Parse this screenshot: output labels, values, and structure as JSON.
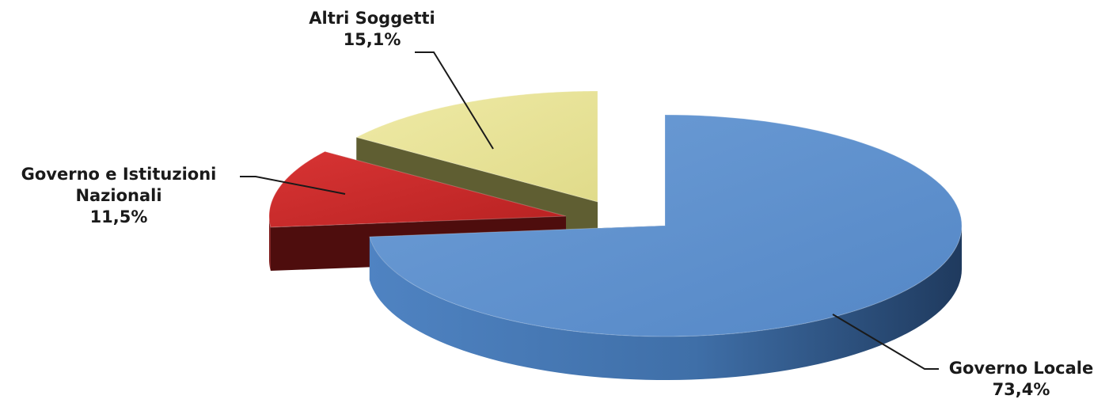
{
  "chart_data": {
    "type": "pie",
    "title": "",
    "slices": [
      {
        "label": "Governo Locale",
        "value": 73.4,
        "display": "73,4%",
        "color": "#5b8fcc",
        "side_color": "#3b6aa3",
        "dark_color": "#233f66"
      },
      {
        "label": "Governo e Istituzioni Nazionali",
        "value": 11.5,
        "display": "11,5%",
        "color": "#cc2a2a",
        "side_color": "#7a1616",
        "dark_color": "#4e0d0d"
      },
      {
        "label": "Altri Soggetti",
        "value": 15.1,
        "display": "15,1%",
        "color": "#e9e49a",
        "side_color": "#8c8a4e",
        "dark_color": "#5f5e32"
      }
    ],
    "exploded": true,
    "style": "3d"
  },
  "labels": {
    "altri_name": "Altri Soggetti",
    "altri_value": "15,1%",
    "gov_line1": "Governo e Istituzioni",
    "gov_line2": "Nazionali",
    "gov_value": "11,5%",
    "loc_name": "Governo Locale",
    "loc_value": "73,4%"
  }
}
